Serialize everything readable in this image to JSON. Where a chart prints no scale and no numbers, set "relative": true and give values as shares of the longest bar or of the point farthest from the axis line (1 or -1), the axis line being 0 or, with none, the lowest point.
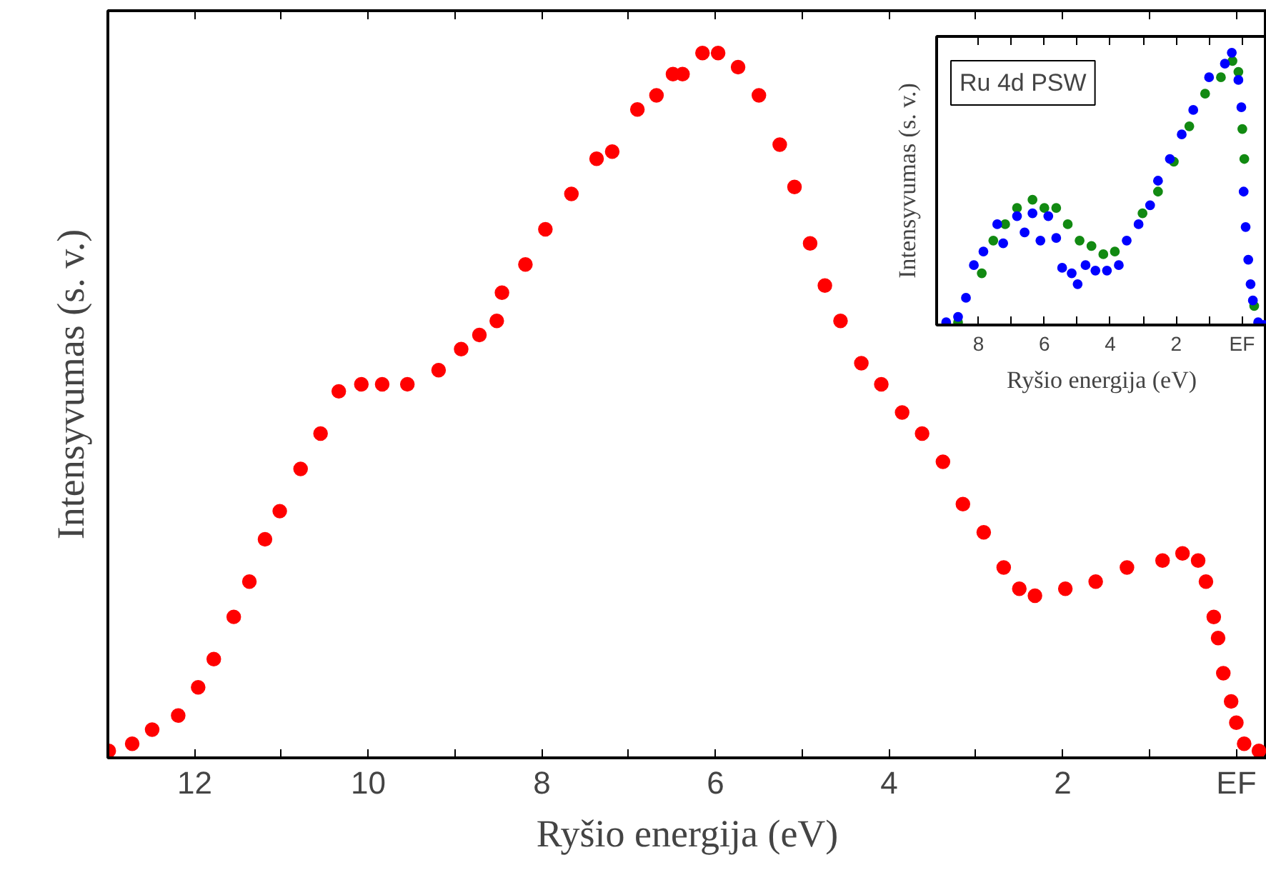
{
  "chart_data": [
    {
      "type": "scatter",
      "xlabel": "Ryšio energija (eV)",
      "ylabel": "Intensyvumas (s. v.)",
      "relative": true,
      "marker": "circle",
      "grid": false,
      "xlim": [
        13.0,
        -0.35
      ],
      "xticks": [
        12,
        {
          "value": 11,
          "label": null
        },
        10,
        {
          "value": 9,
          "label": null
        },
        8,
        {
          "value": 7,
          "label": null
        },
        6,
        {
          "value": 5,
          "label": null
        },
        4,
        {
          "value": 3,
          "label": null
        },
        2,
        {
          "value": 1,
          "label": null
        },
        {
          "value": 0,
          "label": "EF"
        }
      ],
      "series": [
        {
          "color": "#ff0000",
          "x": [
            12.99,
            12.72,
            12.49,
            12.19,
            11.96,
            11.78,
            11.55,
            11.37,
            11.19,
            11.02,
            10.78,
            10.55,
            10.34,
            10.08,
            9.84,
            9.55,
            9.19,
            8.93,
            8.72,
            8.52,
            8.46,
            8.19,
            7.96,
            7.66,
            7.37,
            7.19,
            6.9,
            6.68,
            6.49,
            6.38,
            6.15,
            5.97,
            5.74,
            5.5,
            5.26,
            5.09,
            4.91,
            4.74,
            4.56,
            4.32,
            4.09,
            3.85,
            3.62,
            3.38,
            3.15,
            2.91,
            2.68,
            2.5,
            2.32,
            1.97,
            1.62,
            1.26,
            0.85,
            0.62,
            0.44,
            0.35,
            0.26,
            0.21,
            0.15,
            0.06,
            0.0,
            -0.09,
            -0.26
          ],
          "values": [
            0.01,
            0.02,
            0.04,
            0.06,
            0.1,
            0.14,
            0.2,
            0.25,
            0.31,
            0.35,
            0.41,
            0.46,
            0.52,
            0.53,
            0.53,
            0.53,
            0.55,
            0.58,
            0.6,
            0.62,
            0.66,
            0.7,
            0.75,
            0.8,
            0.85,
            0.86,
            0.92,
            0.94,
            0.97,
            0.97,
            1.0,
            1.0,
            0.98,
            0.94,
            0.87,
            0.81,
            0.73,
            0.67,
            0.62,
            0.56,
            0.53,
            0.49,
            0.46,
            0.42,
            0.36,
            0.32,
            0.27,
            0.24,
            0.23,
            0.24,
            0.25,
            0.27,
            0.28,
            0.29,
            0.28,
            0.25,
            0.2,
            0.17,
            0.12,
            0.08,
            0.05,
            0.02,
            0.01
          ]
        }
      ]
    },
    {
      "type": "scatter",
      "xlabel": "Ryšio energija (eV)",
      "ylabel": "Intensyvumas (s. v.)",
      "relative": true,
      "marker": "circle",
      "grid": false,
      "annotations": [
        "Ru 4d PSW"
      ],
      "xlim": [
        9.27,
        -0.75
      ],
      "xticks": [
        8,
        {
          "value": 7,
          "label": null
        },
        6,
        {
          "value": 5,
          "label": null
        },
        4,
        {
          "value": 3,
          "label": null
        },
        2,
        {
          "value": 1,
          "label": null
        },
        {
          "value": 0,
          "label": "EF"
        }
      ],
      "series": [
        {
          "color": "#128a12",
          "x": [
            8.62,
            8.26,
            7.9,
            7.55,
            7.19,
            6.83,
            6.36,
            6.0,
            5.64,
            5.29,
            4.93,
            4.57,
            4.21,
            3.86,
            3.5,
            3.02,
            2.55,
            2.07,
            1.6,
            1.12,
            0.64,
            0.29,
            0.11,
            -0.01,
            -0.07,
            -0.25,
            -0.37
          ],
          "values": [
            0.01,
            null,
            0.19,
            0.31,
            0.37,
            0.43,
            0.46,
            0.43,
            0.43,
            0.37,
            0.31,
            0.29,
            0.26,
            0.27,
            null,
            0.41,
            0.49,
            0.6,
            0.73,
            0.85,
            0.91,
            0.97,
            0.93,
            0.72,
            0.61,
            null,
            0.07
          ]
        },
        {
          "color": "#0000ff",
          "x": [
            8.98,
            8.62,
            8.38,
            8.14,
            7.85,
            7.43,
            7.25,
            6.83,
            6.6,
            6.36,
            6.12,
            5.88,
            5.64,
            5.46,
            5.17,
            4.99,
            4.75,
            4.45,
            4.1,
            3.74,
            3.5,
            3.14,
            2.79,
            2.55,
            2.19,
            1.83,
            1.48,
            1.0,
            0.52,
            0.31,
            0.11,
            0.02,
            -0.05,
            -0.11,
            -0.19,
            -0.26,
            -0.33,
            -0.49,
            -0.67
          ],
          "values": [
            0.01,
            0.03,
            0.1,
            0.22,
            0.27,
            0.37,
            0.3,
            0.4,
            0.34,
            0.41,
            0.31,
            0.4,
            0.32,
            0.21,
            0.19,
            0.15,
            0.22,
            0.2,
            0.2,
            0.22,
            0.31,
            0.37,
            0.44,
            0.53,
            0.61,
            0.7,
            0.79,
            0.91,
            0.96,
            1.0,
            0.9,
            0.8,
            0.49,
            0.36,
            0.24,
            0.15,
            0.09,
            0.01,
            0.0
          ]
        }
      ]
    }
  ]
}
